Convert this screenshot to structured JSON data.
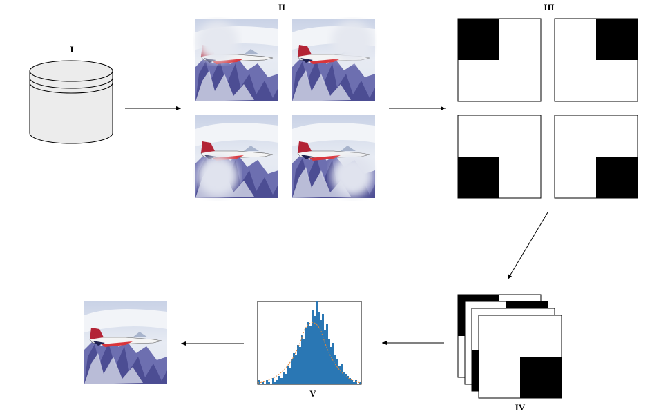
{
  "labels": {
    "storage": "I",
    "crops": "II",
    "masks": "III",
    "stack": "IV",
    "histogram": "V"
  },
  "histogram": {
    "values": [
      2,
      0,
      1,
      0,
      2,
      1,
      0,
      3,
      1,
      2,
      4,
      3,
      6,
      5,
      9,
      8,
      12,
      15,
      14,
      19,
      18,
      24,
      22,
      27,
      30,
      28,
      36,
      33,
      40,
      35,
      31,
      34,
      26,
      29,
      22,
      18,
      20,
      14,
      12,
      9,
      10,
      6,
      5,
      4,
      3,
      2,
      1,
      2,
      0,
      1
    ]
  }
}
